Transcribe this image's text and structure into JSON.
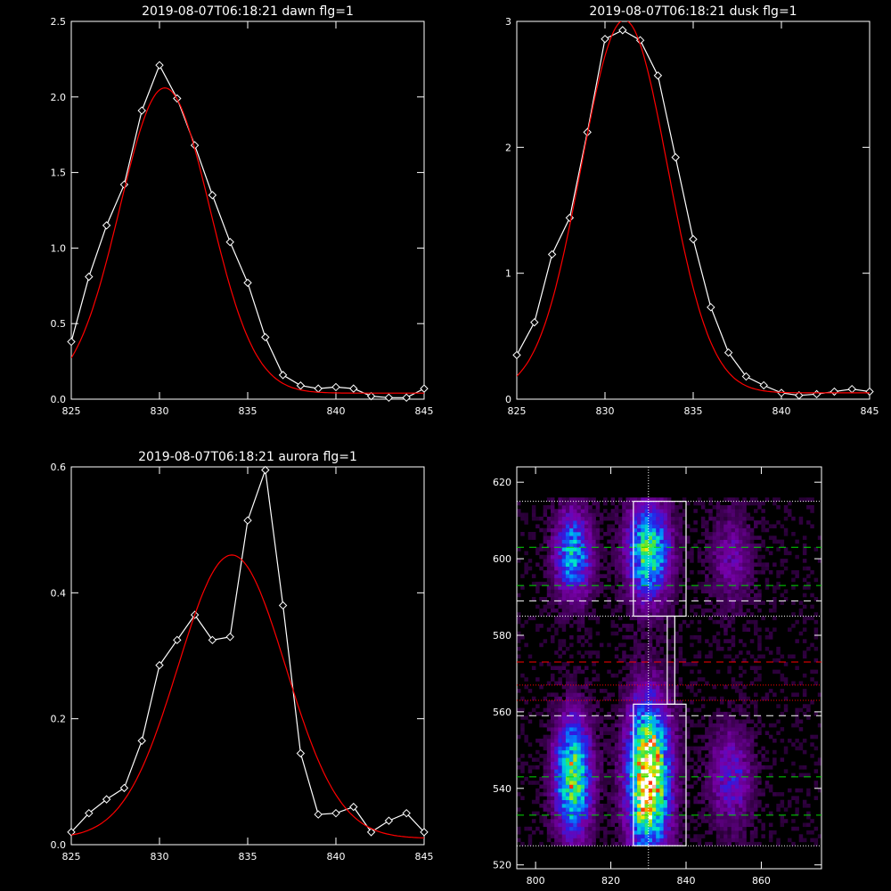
{
  "chart_data": [
    {
      "type": "line",
      "title": "2019-08-07T06:18:21 dawn flg=1",
      "xlim": [
        825,
        845
      ],
      "ylim": [
        0,
        2.5
      ],
      "xticks": [
        "825",
        "830",
        "835",
        "840",
        "845"
      ],
      "yticks": [
        "0.0",
        "0.5",
        "1.0",
        "1.5",
        "2.0",
        "2.5"
      ],
      "series": [
        {
          "color": "#ffffff",
          "marker": "diamond",
          "x": [
            825,
            826,
            827,
            828,
            829,
            830,
            831,
            832,
            833,
            834,
            835,
            836,
            837,
            838,
            839,
            840,
            841,
            842,
            843,
            844,
            845
          ],
          "y": [
            0.38,
            0.81,
            1.15,
            1.42,
            1.91,
            2.21,
            1.99,
            1.68,
            1.35,
            1.04,
            0.77,
            0.41,
            0.16,
            0.09,
            0.07,
            0.08,
            0.07,
            0.02,
            0.01,
            0.01,
            0.07
          ]
        },
        {
          "color": "#ff0000",
          "model": {
            "amp": 2.02,
            "center": 830.3,
            "sigma": 2.55,
            "base": 0.04
          },
          "x": [
            825,
            845
          ]
        }
      ]
    },
    {
      "type": "line",
      "title": "2019-08-07T06:18:21 dusk flg=1",
      "xlim": [
        825,
        845
      ],
      "ylim": [
        0,
        3
      ],
      "xticks": [
        "825",
        "830",
        "835",
        "840",
        "845"
      ],
      "yticks": [
        "0",
        "1",
        "2",
        "3"
      ],
      "series": [
        {
          "color": "#ffffff",
          "marker": "diamond",
          "x": [
            825,
            826,
            827,
            828,
            829,
            830,
            831,
            832,
            833,
            834,
            835,
            836,
            837,
            838,
            839,
            840,
            841,
            842,
            843,
            844,
            845
          ],
          "y": [
            0.35,
            0.61,
            1.15,
            1.44,
            2.12,
            2.86,
            2.93,
            2.85,
            2.57,
            1.92,
            1.27,
            0.73,
            0.37,
            0.18,
            0.11,
            0.05,
            0.03,
            0.04,
            0.06,
            0.08,
            0.06
          ]
        },
        {
          "color": "#ff0000",
          "model": {
            "amp": 2.96,
            "center": 831.1,
            "sigma": 2.45,
            "base": 0.05
          },
          "x": [
            825,
            845
          ]
        }
      ]
    },
    {
      "type": "line",
      "title": "2019-08-07T06:18:21 aurora flg=1",
      "xlim": [
        825,
        845
      ],
      "ylim": [
        0,
        0.6
      ],
      "xticks": [
        "825",
        "830",
        "835",
        "840",
        "845"
      ],
      "yticks": [
        "0.0",
        "0.2",
        "0.4",
        "0.6"
      ],
      "series": [
        {
          "color": "#ffffff",
          "marker": "diamond",
          "x": [
            825,
            826,
            827,
            828,
            829,
            830,
            831,
            832,
            833,
            834,
            835,
            836,
            837,
            838,
            839,
            840,
            841,
            842,
            843,
            844,
            845
          ],
          "y": [
            0.02,
            0.05,
            0.072,
            0.09,
            0.165,
            0.285,
            0.325,
            0.365,
            0.325,
            0.33,
            0.515,
            0.595,
            0.38,
            0.145,
            0.048,
            0.05,
            0.06,
            0.02,
            0.038,
            0.05,
            0.02
          ]
        },
        {
          "color": "#ff0000",
          "model": {
            "amp": 0.45,
            "center": 834.1,
            "sigma": 3.05,
            "base": 0.01
          },
          "x": [
            825,
            845
          ]
        }
      ]
    },
    {
      "type": "heatmap",
      "title": "",
      "xlim": [
        795,
        876
      ],
      "ylim": [
        519,
        624
      ],
      "xticks": [
        "800",
        "820",
        "840",
        "860"
      ],
      "yticks": [
        "520",
        "540",
        "560",
        "580",
        "600",
        "620"
      ],
      "blobs": [
        {
          "x": 810,
          "y": 601,
          "sx": 3.5,
          "sy": 8,
          "amp": 0.55
        },
        {
          "x": 810,
          "y": 543,
          "sx": 3.5,
          "sy": 11,
          "amp": 0.72
        },
        {
          "x": 830,
          "y": 602,
          "sx": 4,
          "sy": 9,
          "amp": 0.68
        },
        {
          "x": 830,
          "y": 543,
          "sx": 4,
          "sy": 14,
          "amp": 1.0
        },
        {
          "x": 852,
          "y": 543,
          "sx": 4,
          "sy": 9,
          "amp": 0.32
        },
        {
          "x": 852,
          "y": 600,
          "sx": 4,
          "sy": 9,
          "amp": 0.22
        }
      ],
      "boxes": [
        {
          "x0": 826,
          "x1": 840,
          "y0": 585,
          "y1": 615
        },
        {
          "x0": 826,
          "x1": 840,
          "y0": 525,
          "y1": 562
        }
      ],
      "connector": {
        "x0": 835,
        "x1": 837,
        "y0": 562,
        "y1": 585
      },
      "hlines": [
        {
          "y": 615,
          "color": "#ffffff",
          "style": "dotted"
        },
        {
          "y": 603,
          "color": "#00dd00",
          "style": "dashed"
        },
        {
          "y": 593,
          "color": "#00dd00",
          "style": "dashed"
        },
        {
          "y": 589,
          "color": "#ffffff",
          "style": "dashed"
        },
        {
          "y": 585,
          "color": "#ffffff",
          "style": "dotted"
        },
        {
          "y": 573,
          "color": "#ff0000",
          "style": "dashed"
        },
        {
          "y": 567,
          "color": "#ff0000",
          "style": "dotted"
        },
        {
          "y": 563,
          "color": "#ff0000",
          "style": "dotted"
        },
        {
          "y": 559,
          "color": "#ffffff",
          "style": "dashed"
        },
        {
          "y": 543,
          "color": "#00dd00",
          "style": "dashed"
        },
        {
          "y": 533,
          "color": "#00dd00",
          "style": "dashed"
        },
        {
          "y": 525,
          "color": "#ffffff",
          "style": "dotted"
        }
      ],
      "vlines": [
        {
          "x": 830,
          "color": "#ffffff",
          "style": "dotted"
        }
      ]
    }
  ]
}
